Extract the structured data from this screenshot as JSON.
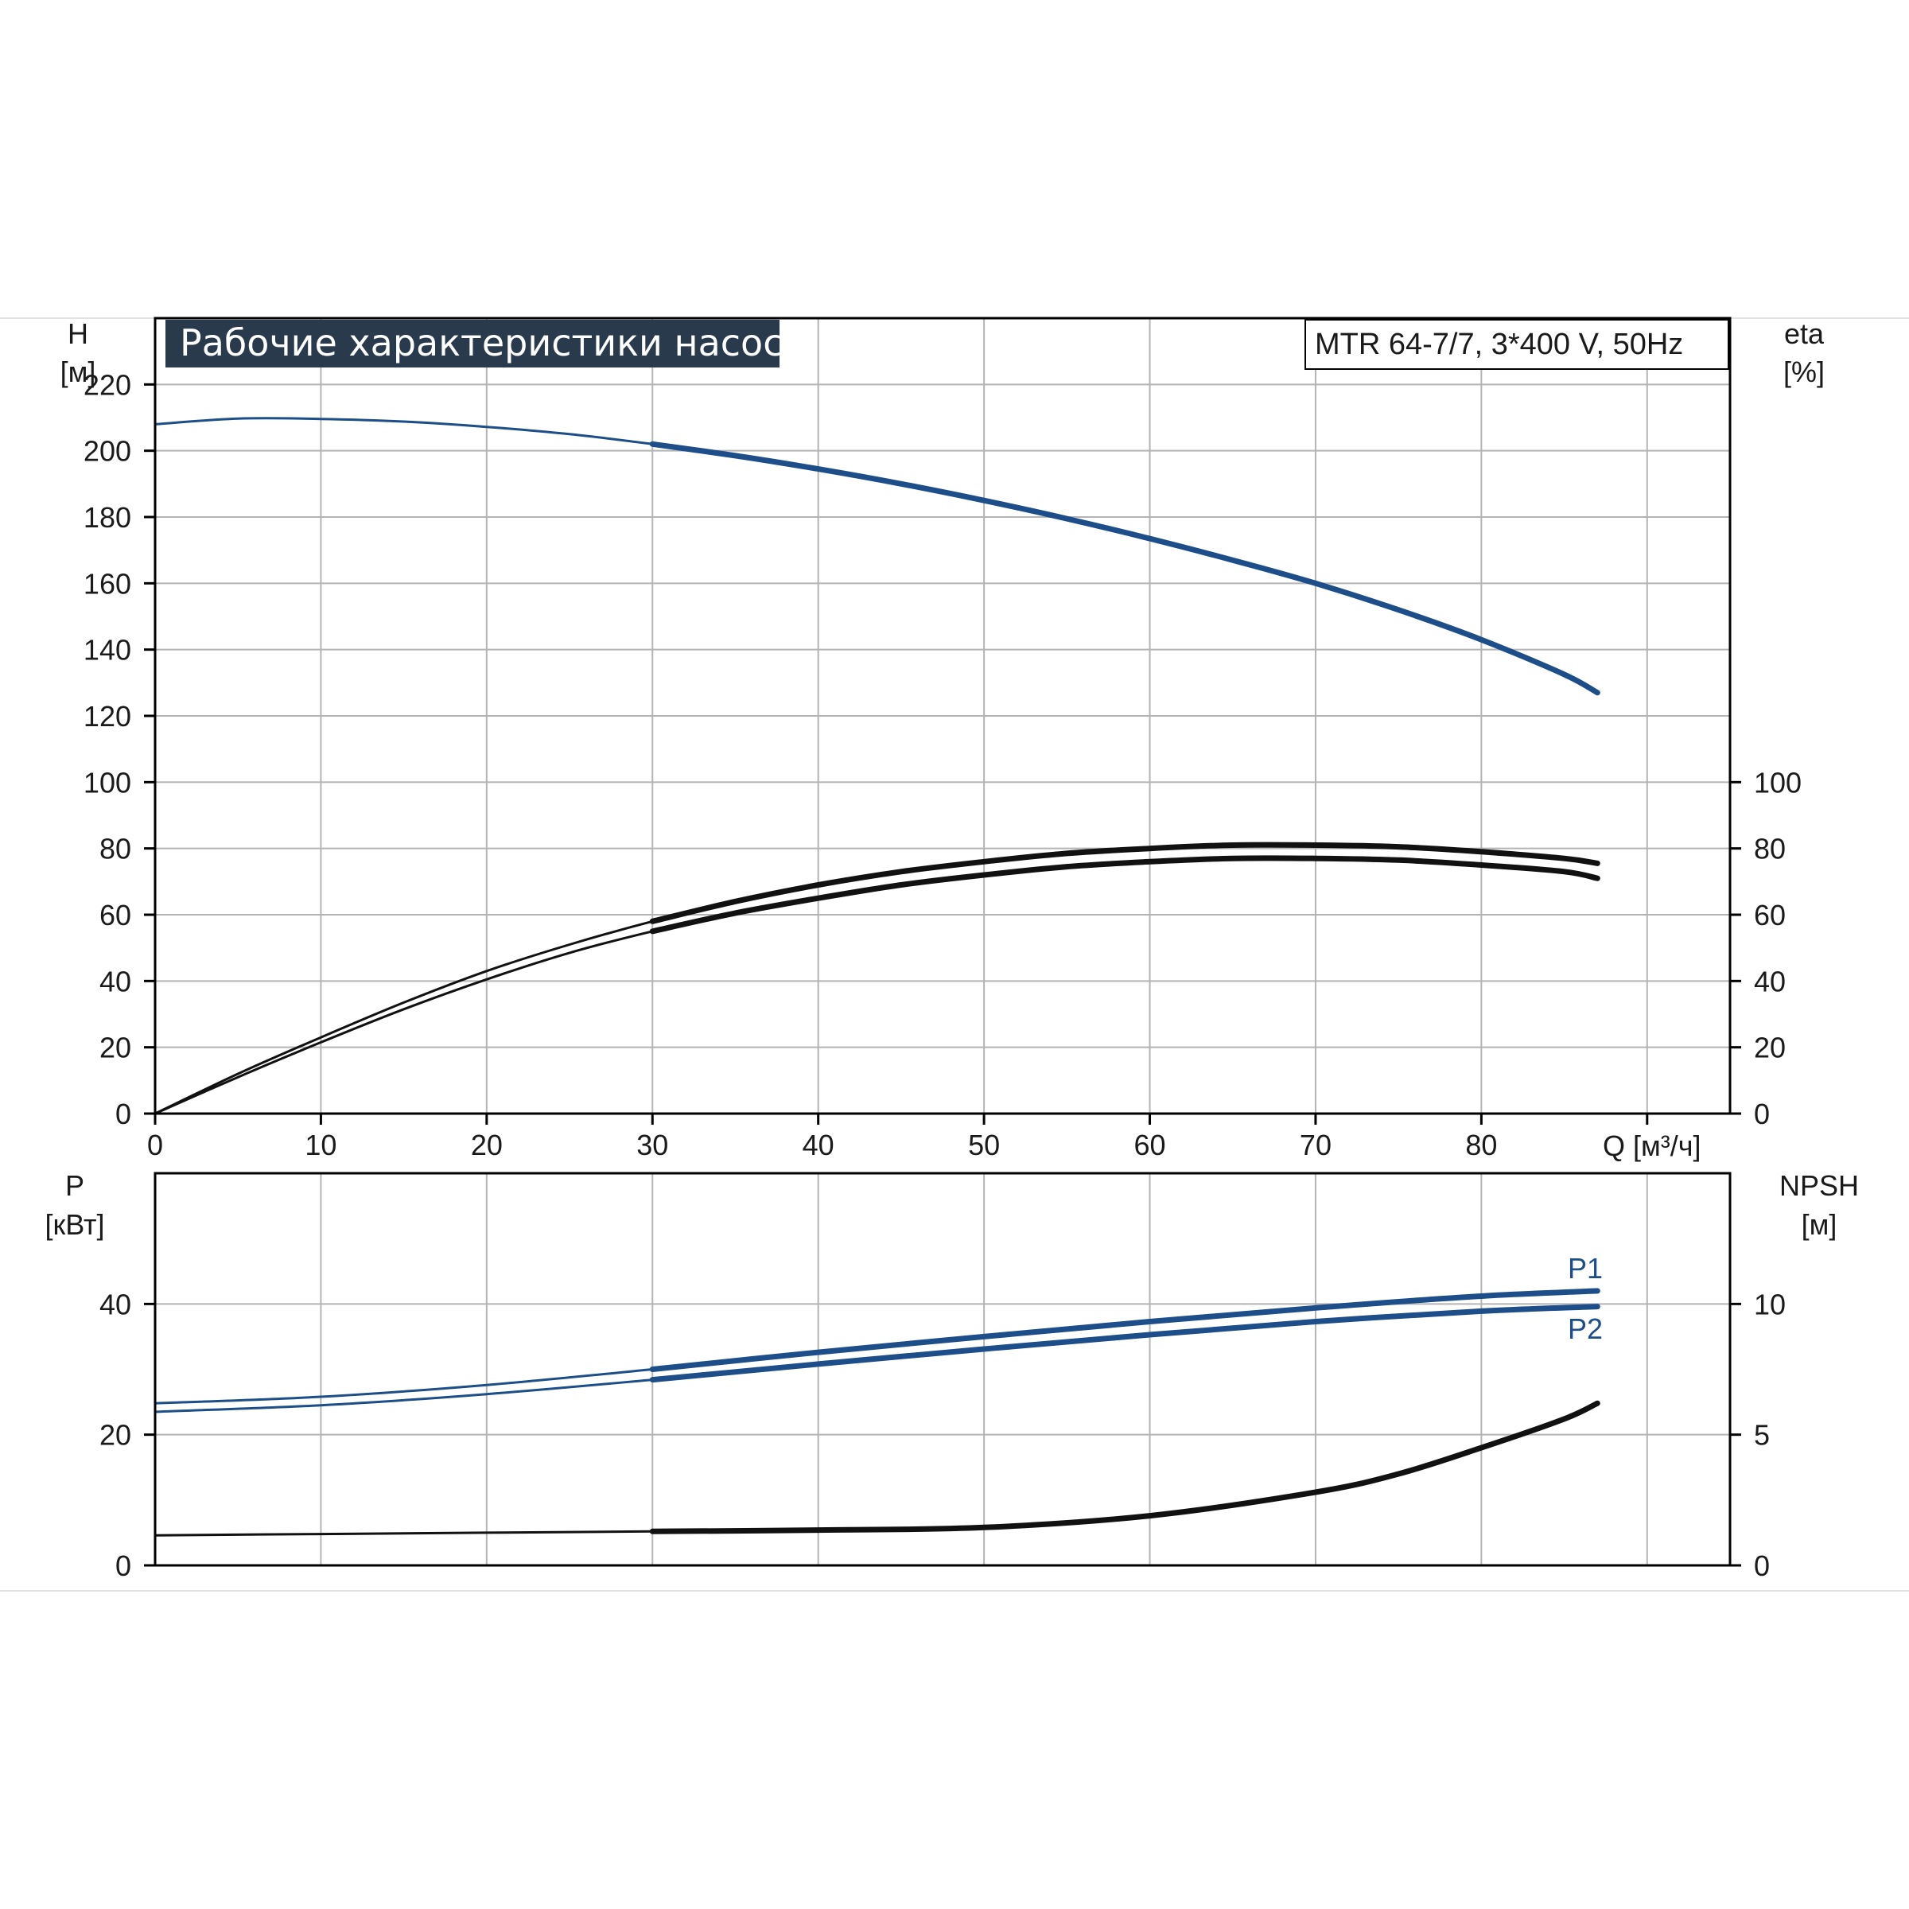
{
  "colors": {
    "blue": "#1d4e89",
    "black": "#111111",
    "title_bg": "#2a3a4d"
  },
  "header": {
    "title": "Рабочие характеристики насоса",
    "model": "MTR 64-7/7, 3*400 V, 50Hz"
  },
  "chart_data": [
    {
      "type": "line",
      "panel": "performance",
      "x_ticks": [
        "0",
        "10",
        "20",
        "30",
        "40",
        "50",
        "60",
        "70",
        "80"
      ],
      "x_unit_label": "Q [м³/ч]",
      "xlim": [
        0,
        95
      ],
      "left_axis": {
        "name": "H",
        "unit": "[м]",
        "ylim": [
          0,
          240
        ],
        "ticks": [
          "0",
          "20",
          "40",
          "60",
          "80",
          "100",
          "120",
          "140",
          "160",
          "180",
          "200",
          "220"
        ]
      },
      "right_axis": {
        "name": "eta",
        "unit": "[%]",
        "ylim": [
          0,
          240
        ],
        "ticks": [
          "0",
          "20",
          "40",
          "60",
          "80",
          "100"
        ]
      },
      "grid": true,
      "series": [
        {
          "id": "H",
          "axis": "left",
          "color": "blue",
          "operating_from": 30,
          "x": [
            0,
            5,
            10,
            15,
            20,
            25,
            30,
            35,
            40,
            45,
            50,
            55,
            60,
            65,
            70,
            75,
            80,
            85,
            87
          ],
          "y": [
            208,
            209.7,
            209.6,
            208.8,
            207.2,
            205,
            202,
            198.5,
            194.5,
            190,
            185,
            179.5,
            173.5,
            167,
            160,
            152,
            143,
            132.5,
            127
          ]
        },
        {
          "id": "eta1",
          "axis": "right",
          "color": "black",
          "operating_from": 30,
          "x": [
            0,
            5,
            10,
            15,
            20,
            25,
            30,
            35,
            40,
            45,
            50,
            55,
            60,
            65,
            70,
            75,
            80,
            85,
            87
          ],
          "y": [
            0,
            12,
            23,
            33.5,
            43,
            51,
            58,
            64,
            69,
            73,
            76,
            78.5,
            80,
            81,
            81,
            80.5,
            79,
            77,
            75.5
          ]
        },
        {
          "id": "eta2",
          "axis": "right",
          "color": "black",
          "operating_from": 30,
          "x": [
            0,
            5,
            10,
            15,
            20,
            25,
            30,
            35,
            40,
            45,
            50,
            55,
            60,
            65,
            70,
            75,
            80,
            85,
            87
          ],
          "y": [
            0,
            11,
            21.5,
            31.5,
            40.5,
            48.5,
            55,
            60.5,
            65,
            69,
            72,
            74.5,
            76,
            77,
            77,
            76.5,
            75,
            73,
            71
          ]
        }
      ]
    },
    {
      "type": "line",
      "panel": "power",
      "xlim": [
        0,
        95
      ],
      "left_axis": {
        "name": "P",
        "unit": "[кВт]",
        "ylim": [
          0,
          60
        ],
        "ticks": [
          "0",
          "20",
          "40"
        ]
      },
      "right_axis": {
        "name": "NPSH",
        "unit": "[м]",
        "ylim": [
          0,
          15
        ],
        "ticks": [
          "0",
          "5",
          "10"
        ]
      },
      "grid": true,
      "series": [
        {
          "id": "P1",
          "name": "P1",
          "axis": "left",
          "color": "blue",
          "operating_from": 30,
          "x": [
            0,
            10,
            20,
            30,
            40,
            50,
            60,
            70,
            80,
            87
          ],
          "y": [
            24.8,
            25.8,
            27.6,
            30,
            32.6,
            35,
            37.3,
            39.4,
            41.2,
            42
          ]
        },
        {
          "id": "P2",
          "name": "P2",
          "axis": "left",
          "color": "blue",
          "operating_from": 30,
          "x": [
            0,
            10,
            20,
            30,
            40,
            50,
            60,
            70,
            80,
            87
          ],
          "y": [
            23.5,
            24.5,
            26.2,
            28.4,
            30.8,
            33.1,
            35.3,
            37.3,
            38.9,
            39.6
          ]
        },
        {
          "id": "NPSH",
          "axis": "right",
          "color": "black",
          "operating_from": 30,
          "x": [
            0,
            10,
            20,
            30,
            40,
            50,
            60,
            70,
            75,
            80,
            85,
            87
          ],
          "y": [
            1.15,
            1.2,
            1.25,
            1.3,
            1.35,
            1.45,
            1.9,
            2.8,
            3.5,
            4.5,
            5.6,
            6.2
          ]
        }
      ]
    }
  ]
}
